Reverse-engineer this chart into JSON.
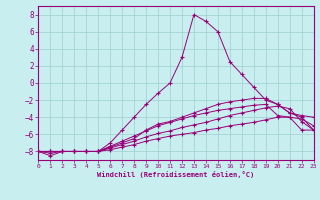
{
  "xlabel": "Windchill (Refroidissement éolien,°C)",
  "background_color": "#c8eef0",
  "grid_color": "#9ecfcf",
  "line_color": "#990077",
  "xlim": [
    0,
    23
  ],
  "ylim": [
    -9,
    9
  ],
  "xticks": [
    0,
    1,
    2,
    3,
    4,
    5,
    6,
    7,
    8,
    9,
    10,
    11,
    12,
    13,
    14,
    15,
    16,
    17,
    18,
    19,
    20,
    21,
    22,
    23
  ],
  "yticks": [
    -8,
    -6,
    -4,
    -2,
    0,
    2,
    4,
    6,
    8
  ],
  "series": [
    [
      -8.0,
      -8.2,
      -8.0,
      -8.0,
      -8.0,
      -8.0,
      -7.8,
      -7.5,
      -7.2,
      -6.8,
      -6.5,
      -6.2,
      -6.0,
      -5.8,
      -5.5,
      -5.3,
      -5.0,
      -4.8,
      -4.6,
      -4.3,
      -4.0,
      -4.0,
      -5.5,
      -5.5
    ],
    [
      -8.0,
      -8.0,
      -8.0,
      -8.0,
      -8.0,
      -8.0,
      -7.6,
      -7.2,
      -6.8,
      -6.3,
      -5.9,
      -5.6,
      -5.2,
      -4.9,
      -4.6,
      -4.2,
      -3.8,
      -3.5,
      -3.2,
      -2.9,
      -2.7,
      -3.0,
      -4.5,
      -5.5
    ],
    [
      -8.0,
      -8.0,
      -8.0,
      -8.0,
      -8.0,
      -8.0,
      -7.4,
      -6.8,
      -6.2,
      -5.6,
      -5.0,
      -4.6,
      -4.2,
      -3.8,
      -3.5,
      -3.2,
      -3.0,
      -2.8,
      -2.6,
      -2.5,
      -3.8,
      -4.0,
      -4.2,
      -5.0
    ],
    [
      -8.0,
      -8.5,
      -8.0,
      -8.0,
      -8.0,
      -8.0,
      -7.5,
      -7.0,
      -6.5,
      -5.5,
      -4.8,
      -4.5,
      -4.0,
      -3.5,
      -3.0,
      -2.5,
      -2.2,
      -2.0,
      -1.8,
      -1.8,
      -2.5,
      -3.5,
      -3.8,
      -4.0
    ],
    [
      -8.0,
      -8.0,
      -8.0,
      -8.0,
      -8.0,
      -8.0,
      -7.0,
      -5.5,
      -4.0,
      -2.5,
      -1.2,
      0.0,
      3.0,
      8.0,
      7.2,
      6.0,
      2.5,
      1.0,
      -0.5,
      -2.0,
      -2.5,
      -3.5,
      -4.0,
      -5.5
    ]
  ]
}
